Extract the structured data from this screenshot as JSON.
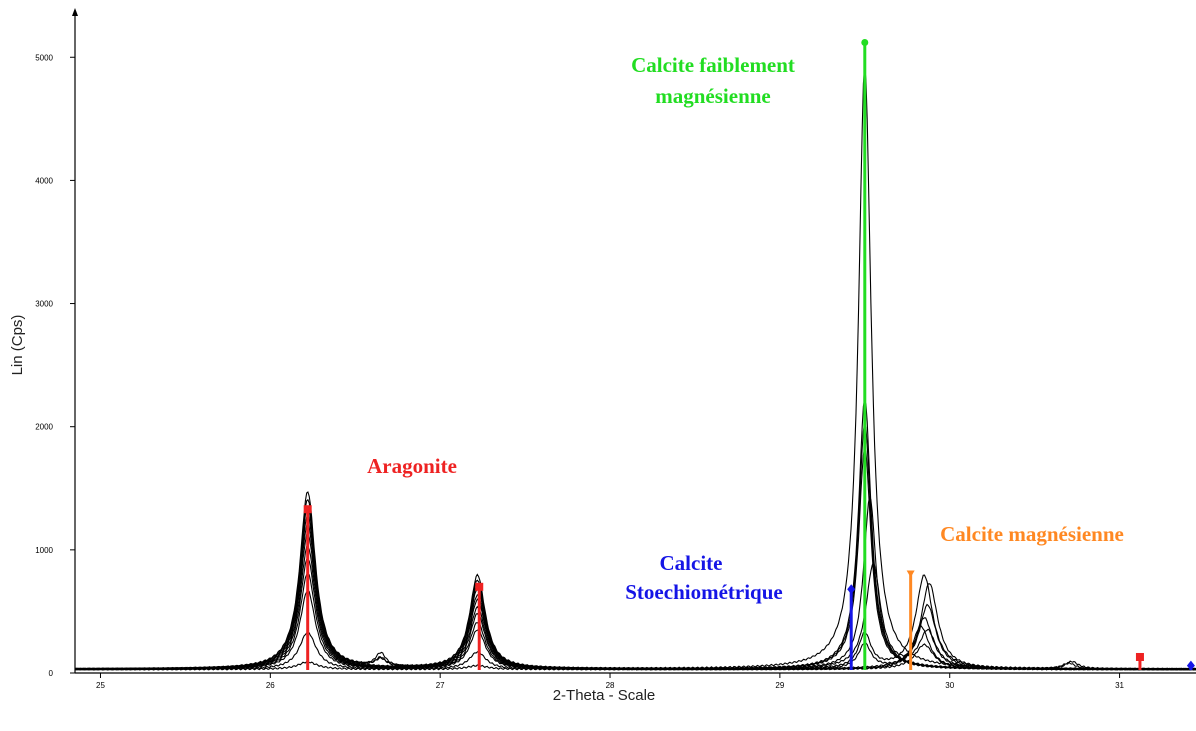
{
  "chart_data": {
    "type": "line",
    "xlabel": "2-Theta - Scale",
    "ylabel": "Lin (Cps)",
    "xlim": [
      24.85,
      31.45
    ],
    "ylim": [
      0,
      5400
    ],
    "x_ticks": [
      25,
      26,
      27,
      28,
      29,
      30,
      31
    ],
    "y_ticks": [
      0,
      1000,
      2000,
      3000,
      4000,
      5000
    ],
    "baseline": 30,
    "patterns": [
      {
        "peaks": [
          [
            26.22,
            1440,
            0.075
          ],
          [
            27.22,
            760,
            0.075
          ],
          [
            29.5,
            4900,
            0.06
          ],
          [
            26.65,
            60,
            0.05
          ]
        ]
      },
      {
        "peaks": [
          [
            26.22,
            1380,
            0.075
          ],
          [
            27.22,
            720,
            0.075
          ],
          [
            29.5,
            2200,
            0.06
          ],
          [
            26.65,
            70,
            0.05
          ]
        ]
      },
      {
        "peaks": [
          [
            26.22,
            1320,
            0.075
          ],
          [
            27.22,
            680,
            0.075
          ],
          [
            29.5,
            2000,
            0.06
          ]
        ]
      },
      {
        "peaks": [
          [
            26.22,
            1250,
            0.075
          ],
          [
            27.22,
            650,
            0.075
          ],
          [
            29.5,
            1800,
            0.06
          ],
          [
            26.65,
            110,
            0.05
          ]
        ]
      },
      {
        "peaks": [
          [
            26.22,
            1180,
            0.075
          ],
          [
            27.22,
            600,
            0.075
          ],
          [
            29.53,
            1400,
            0.06
          ]
        ]
      },
      {
        "peaks": [
          [
            26.22,
            1100,
            0.075
          ],
          [
            27.22,
            560,
            0.075
          ],
          [
            29.55,
            850,
            0.07
          ],
          [
            29.87,
            300,
            0.08
          ]
        ]
      },
      {
        "peaks": [
          [
            26.22,
            1000,
            0.075
          ],
          [
            27.22,
            500,
            0.075
          ],
          [
            29.85,
            760,
            0.08
          ],
          [
            29.5,
            280,
            0.06
          ]
        ]
      },
      {
        "peaks": [
          [
            26.22,
            900,
            0.075
          ],
          [
            27.22,
            450,
            0.075
          ],
          [
            29.88,
            700,
            0.08
          ],
          [
            30.72,
            60,
            0.06
          ]
        ]
      },
      {
        "peaks": [
          [
            26.22,
            780,
            0.075
          ],
          [
            27.22,
            380,
            0.075
          ],
          [
            29.87,
            520,
            0.08
          ],
          [
            29.5,
            200,
            0.06
          ]
        ]
      },
      {
        "peaks": [
          [
            26.22,
            640,
            0.075
          ],
          [
            27.22,
            320,
            0.075
          ],
          [
            29.85,
            420,
            0.08
          ],
          [
            30.7,
            50,
            0.06
          ]
        ]
      },
      {
        "peaks": [
          [
            26.22,
            300,
            0.08
          ],
          [
            27.22,
            140,
            0.08
          ],
          [
            29.83,
            350,
            0.08
          ]
        ]
      },
      {
        "peaks": [
          [
            26.22,
            60,
            0.09
          ],
          [
            27.22,
            30,
            0.09
          ],
          [
            29.85,
            200,
            0.09
          ]
        ]
      }
    ],
    "markers": [
      {
        "x": 26.22,
        "y": 1330,
        "color": "#ee2222",
        "symbol": "square"
      },
      {
        "x": 27.23,
        "y": 700,
        "color": "#ee2222",
        "symbol": "square"
      },
      {
        "x": 29.42,
        "y": 680,
        "color": "#1515e6",
        "symbol": "diamond"
      },
      {
        "x": 29.5,
        "y": 5120,
        "color": "#22dd22",
        "symbol": "circle"
      },
      {
        "x": 29.77,
        "y": 800,
        "color": "#ff8822",
        "symbol": "triangle"
      },
      {
        "x": 31.12,
        "y": 130,
        "color": "#ee2222",
        "symbol": "square"
      },
      {
        "x": 31.42,
        "y": 60,
        "color": "#1515e6",
        "symbol": "diamond"
      }
    ],
    "annotations": {
      "aragonite": "Aragonite",
      "calcite_faible_1": "Calcite faiblement",
      "calcite_faible_2": "magnésienne",
      "calcite_stoechio_1": "Calcite",
      "calcite_stoechio_2": "Stoechiométrique",
      "calcite_magnesienne": "Calcite magnésienne"
    },
    "colors": {
      "aragonite": "#ee2222",
      "calcite_faible": "#22dd22",
      "calcite_stoechio": "#1515e6",
      "calcite_magnesienne": "#ff8822",
      "trace": "#000000"
    },
    "grid": false,
    "legend": "none"
  }
}
